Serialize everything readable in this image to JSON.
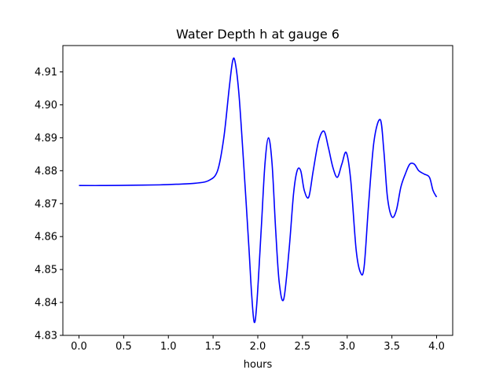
{
  "chart_data": {
    "type": "line",
    "title": "Water Depth h at gauge 6",
    "xlabel": "hours",
    "ylabel": "",
    "xlim": [
      -0.18,
      4.18
    ],
    "ylim": [
      4.83,
      4.918
    ],
    "xticks": [
      0.0,
      0.5,
      1.0,
      1.5,
      2.0,
      2.5,
      3.0,
      3.5,
      4.0
    ],
    "xtick_labels": [
      "0.0",
      "0.5",
      "1.0",
      "1.5",
      "2.0",
      "2.5",
      "3.0",
      "3.5",
      "4.0"
    ],
    "yticks": [
      4.83,
      4.84,
      4.85,
      4.86,
      4.87,
      4.88,
      4.89,
      4.9,
      4.91
    ],
    "ytick_labels": [
      "4.83",
      "4.84",
      "4.85",
      "4.86",
      "4.87",
      "4.88",
      "4.89",
      "4.90",
      "4.91"
    ],
    "grid": false,
    "series": [
      {
        "color": "#0000ff",
        "x": [
          0.0,
          0.3,
          0.6,
          0.9,
          1.1,
          1.3,
          1.45,
          1.55,
          1.62,
          1.68,
          1.72,
          1.75,
          1.79,
          1.84,
          1.9,
          1.93,
          1.96,
          1.99,
          2.04,
          2.08,
          2.12,
          2.16,
          2.2,
          2.24,
          2.29,
          2.35,
          2.4,
          2.44,
          2.48,
          2.52,
          2.57,
          2.62,
          2.68,
          2.74,
          2.79,
          2.84,
          2.89,
          2.94,
          2.99,
          3.04,
          3.1,
          3.15,
          3.19,
          3.24,
          3.3,
          3.37,
          3.41,
          3.45,
          3.5,
          3.55,
          3.6,
          3.65,
          3.7,
          3.75,
          3.8,
          3.86,
          3.92,
          3.96,
          4.0
        ],
        "y": [
          4.8755,
          4.8755,
          4.8756,
          4.8757,
          4.8759,
          4.8762,
          4.877,
          4.88,
          4.89,
          4.905,
          4.9135,
          4.9125,
          4.903,
          4.883,
          4.857,
          4.843,
          4.834,
          4.84,
          4.863,
          4.882,
          4.89,
          4.882,
          4.862,
          4.846,
          4.841,
          4.856,
          4.873,
          4.88,
          4.88,
          4.874,
          4.872,
          4.88,
          4.889,
          4.892,
          4.887,
          4.881,
          4.878,
          4.882,
          4.8855,
          4.877,
          4.856,
          4.849,
          4.851,
          4.87,
          4.889,
          4.8955,
          4.886,
          4.872,
          4.866,
          4.868,
          4.875,
          4.879,
          4.882,
          4.882,
          4.88,
          4.879,
          4.878,
          4.874,
          4.872
        ]
      }
    ]
  }
}
